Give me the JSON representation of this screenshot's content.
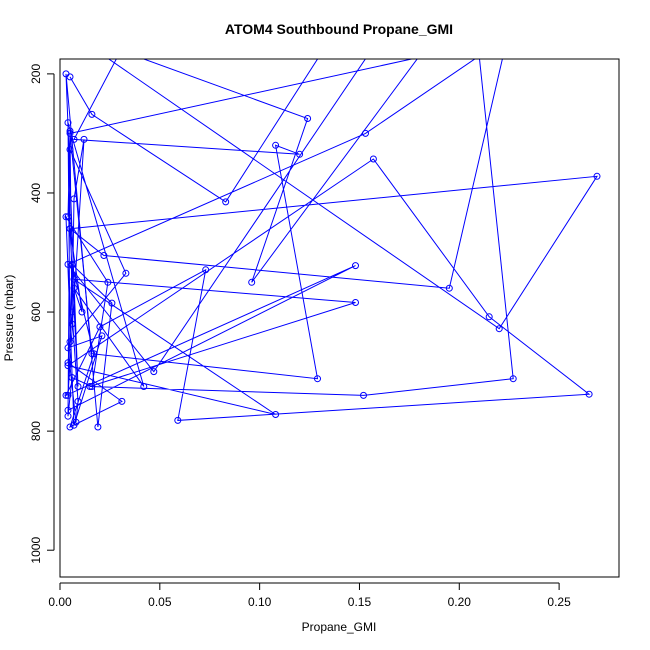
{
  "chart_data": {
    "type": "line",
    "title": "ATOM4 Southbound Propane_GMI",
    "xlabel": "Propane_GMI",
    "ylabel": "Pressure (mbar)",
    "xlim": [
      0,
      0.28
    ],
    "ylim": [
      1045,
      175
    ],
    "y_reversed": true,
    "xticks": [
      0.0,
      0.05,
      0.1,
      0.15,
      0.2,
      0.25
    ],
    "xtick_labels": [
      "0.00",
      "0.05",
      "0.10",
      "0.15",
      "0.20",
      "0.25"
    ],
    "yticks": [
      1000,
      800,
      600,
      400,
      200
    ],
    "ytick_labels": [
      "1000",
      "800",
      "600",
      "400",
      "200"
    ],
    "grid": false,
    "legend": "none",
    "marker": "open-circle",
    "color": "#0000ff",
    "series": [
      {
        "x": [
          0.005,
          0.016,
          0.083,
          0.13,
          0.029,
          0.007,
          0.12,
          0.108,
          0.129,
          0.016,
          0.005,
          0.224,
          0.195,
          0.022,
          0.005,
          0.269,
          0.22,
          0.005,
          0.124,
          0.096,
          0.18,
          0.154,
          0.047,
          0.004,
          0.153,
          0.21,
          0.227,
          0.152,
          0.015,
          0.148,
          0.007,
          0.108,
          0.004,
          0.157,
          0.215,
          0.265,
          0.059,
          0.073,
          0.02,
          0.003,
          0.148,
          0.004
        ],
        "y": [
          205,
          268,
          415,
          170,
          170,
          310,
          335,
          320,
          712,
          670,
          300,
          140,
          560,
          505,
          460,
          372,
          628,
          130,
          275,
          550,
          170,
          170,
          700,
          520,
          300,
          170,
          712,
          740,
          725,
          584,
          545,
          772,
          690,
          343,
          608,
          738,
          782,
          529,
          625,
          740,
          522,
          765
        ]
      },
      {
        "x": [
          0.004,
          0.005,
          0.006,
          0.007,
          0.012,
          0.004,
          0.006,
          0.026,
          0.019,
          0.003,
          0.009,
          0.005,
          0.011,
          0.007,
          0.042,
          0.004,
          0.005,
          0.033,
          0.005,
          0.004,
          0.006,
          0.016,
          0.024,
          0.003,
          0.007,
          0.021,
          0.004,
          0.008,
          0.009,
          0.006,
          0.004,
          0.031,
          0.005,
          0.017,
          0.006
        ],
        "y": [
          440,
          296,
          620,
          410,
          310,
          740,
          520,
          585,
          793,
          200,
          725,
          460,
          600,
          560,
          725,
          282,
          650,
          535,
          327,
          775,
          710,
          725,
          550,
          440,
          790,
          640,
          660,
          785,
          750,
          600,
          685,
          750,
          793,
          670,
          520
        ]
      }
    ]
  }
}
